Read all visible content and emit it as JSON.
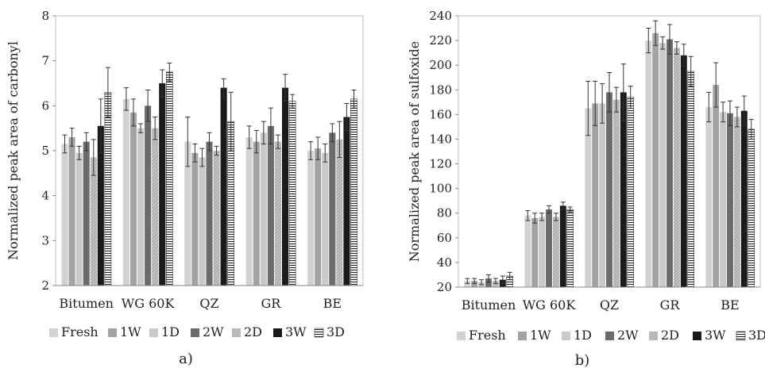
{
  "series_names": [
    "Fresh",
    "1W",
    "1D",
    "2W",
    "2D",
    "3W",
    "3D"
  ],
  "series_styles": [
    {
      "fill": "#d2d2d2",
      "pattern": "none"
    },
    {
      "fill": "#a3a3a3",
      "pattern": "none"
    },
    {
      "fill": "#c9c9c9",
      "pattern": "none"
    },
    {
      "fill": "#6b6b6b",
      "pattern": "none"
    },
    {
      "fill": "#b3b3b3",
      "pattern": "diag"
    },
    {
      "fill": "#1b1b1b",
      "pattern": "none"
    },
    {
      "fill": "#ffffff",
      "pattern": "hlines"
    }
  ],
  "chart_data": [
    {
      "type": "bar",
      "panel_label": "a)",
      "title": "",
      "xlabel": "",
      "ylabel": "Normalized peak area of carbonyl",
      "ylim": [
        2,
        8
      ],
      "ytick_step": 1,
      "grid": false,
      "legend_position": "bottom",
      "categories": [
        "Bitumen",
        "WG 60K",
        "QZ",
        "GR",
        "BE"
      ],
      "series": [
        {
          "name": "Fresh",
          "values": [
            5.15,
            6.15,
            5.2,
            5.3,
            5.0
          ],
          "errors": [
            0.2,
            0.25,
            0.55,
            0.25,
            0.2
          ]
        },
        {
          "name": "1W",
          "values": [
            5.3,
            5.85,
            4.95,
            5.2,
            5.05
          ],
          "errors": [
            0.2,
            0.3,
            0.2,
            0.25,
            0.25
          ]
        },
        {
          "name": "1D",
          "values": [
            4.95,
            5.5,
            4.85,
            5.4,
            4.95
          ],
          "errors": [
            0.15,
            0.1,
            0.2,
            0.25,
            0.2
          ]
        },
        {
          "name": "2W",
          "values": [
            5.2,
            6.0,
            5.2,
            5.55,
            5.4
          ],
          "errors": [
            0.2,
            0.35,
            0.2,
            0.4,
            0.2
          ]
        },
        {
          "name": "2D",
          "values": [
            4.85,
            5.5,
            5.0,
            5.2,
            5.25
          ],
          "errors": [
            0.4,
            0.25,
            0.1,
            0.15,
            0.4
          ]
        },
        {
          "name": "3W",
          "values": [
            5.55,
            6.5,
            6.4,
            6.4,
            5.75
          ],
          "errors": [
            0.6,
            0.3,
            0.2,
            0.3,
            0.3
          ]
        },
        {
          "name": "3D",
          "values": [
            6.3,
            6.75,
            5.65,
            6.1,
            6.15
          ],
          "errors": [
            0.55,
            0.2,
            0.65,
            0.15,
            0.2
          ]
        }
      ]
    },
    {
      "type": "bar",
      "panel_label": "b)",
      "title": "",
      "xlabel": "",
      "ylabel": "Normalized peak area of sulfoxide",
      "ylim": [
        20,
        240
      ],
      "ytick_step": 20,
      "grid": false,
      "legend_position": "bottom",
      "categories": [
        "Bitumen",
        "WG 60K",
        "QZ",
        "GR",
        "BE"
      ],
      "series": [
        {
          "name": "Fresh",
          "values": [
            25,
            78,
            165,
            220,
            166
          ],
          "errors": [
            2,
            4,
            22,
            10,
            12
          ]
        },
        {
          "name": "1W",
          "values": [
            25,
            76,
            169,
            226,
            184
          ],
          "errors": [
            2,
            4,
            18,
            10,
            18
          ]
        },
        {
          "name": "1D",
          "values": [
            24,
            77,
            169,
            218,
            162
          ],
          "errors": [
            2,
            3,
            16,
            5,
            8
          ]
        },
        {
          "name": "2W",
          "values": [
            27,
            83,
            178,
            221,
            161
          ],
          "errors": [
            3,
            3,
            16,
            12,
            10
          ]
        },
        {
          "name": "2D",
          "values": [
            25,
            77,
            172,
            214,
            158
          ],
          "errors": [
            2,
            3,
            10,
            5,
            8
          ]
        },
        {
          "name": "3W",
          "values": [
            26,
            86,
            178,
            208,
            163
          ],
          "errors": [
            3,
            3,
            23,
            9,
            12
          ]
        },
        {
          "name": "3D",
          "values": [
            29,
            83,
            174,
            195,
            148
          ],
          "errors": [
            3,
            2,
            9,
            12,
            8
          ]
        }
      ]
    }
  ]
}
